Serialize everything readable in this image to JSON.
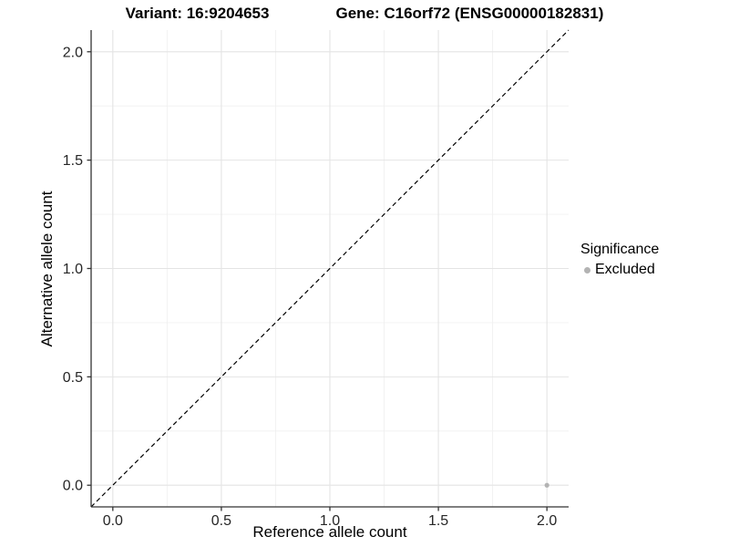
{
  "chart_data": {
    "type": "scatter",
    "title_left": "Variant: 16:9204653",
    "title_right": "Gene: C16orf72 (ENSG00000182831)",
    "xlabel": "Reference allele count",
    "ylabel": "Alternative allele count",
    "xlim": [
      -0.1,
      2.1
    ],
    "ylim": [
      -0.1,
      2.1
    ],
    "xticks": [
      0,
      0.5,
      1,
      1.5,
      2
    ],
    "xtick_labels": [
      "0.0",
      "0.5",
      "1.0",
      "1.5",
      "2.0"
    ],
    "yticks": [
      0,
      0.5,
      1,
      1.5,
      2
    ],
    "ytick_labels": [
      "0.0",
      "0.5",
      "1.0",
      "1.5",
      "2.0"
    ],
    "minor_xticks": [
      0.25,
      0.75,
      1.25,
      1.75
    ],
    "minor_yticks": [
      0.25,
      0.75,
      1.25,
      1.75
    ],
    "grid": {
      "major_color": "#e4e4e4",
      "minor_color": "#f0f0f0",
      "background": "#ffffff"
    },
    "axis_color": "#333333",
    "tick_label_color": "#262626",
    "identity_line": {
      "style": "dashed",
      "color": "#000000",
      "from": {
        "x": -0.1,
        "y": -0.1
      },
      "to": {
        "x": 2.1,
        "y": 2.1
      }
    },
    "series": [
      {
        "name": "Excluded",
        "color": "#b3b3b3",
        "points": [
          {
            "x": 2,
            "y": 0
          }
        ]
      }
    ],
    "legend": {
      "title": "Significance",
      "position": "right",
      "entries": [
        {
          "label": "Excluded",
          "color": "#b3b3b3"
        }
      ]
    }
  }
}
